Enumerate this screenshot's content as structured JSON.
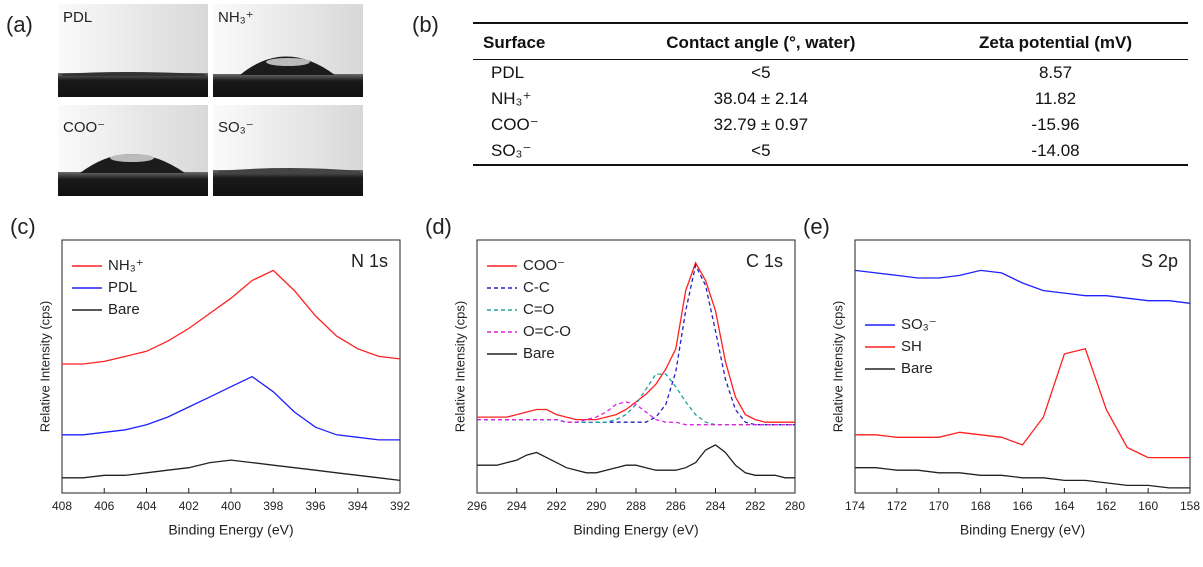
{
  "panel_a": {
    "label": "(a)",
    "images": [
      "PDL",
      "NH₃⁺",
      "COO⁻",
      "SO₃⁻"
    ]
  },
  "panel_b": {
    "label": "(b)",
    "table": {
      "columns": [
        "Surface",
        "Contact angle (°, water)",
        "Zeta potential (mV)"
      ],
      "rows": [
        [
          "PDL",
          "<5",
          "8.57"
        ],
        [
          "NH₃⁺",
          "38.04 ± 2.14",
          "11.82"
        ],
        [
          "COO⁻",
          "32.79 ± 0.97",
          "-15.96"
        ],
        [
          "SO₃⁻",
          "<5",
          "-14.08"
        ]
      ]
    }
  },
  "chart_data": [
    {
      "type": "line",
      "panel": "(c)",
      "annotation": "N 1s",
      "xlabel": "Binding Energy (eV)",
      "ylabel": "Relative Intensity (cps)",
      "x": [
        408,
        407,
        406,
        405,
        404,
        403,
        402,
        401,
        400,
        399,
        398,
        397,
        396,
        395,
        394,
        393,
        392
      ],
      "xlim": [
        408,
        392
      ],
      "xticks": [
        408,
        406,
        404,
        402,
        400,
        398,
        396,
        394,
        392
      ],
      "ylim": [
        0,
        100
      ],
      "legend": "upper left",
      "series": [
        {
          "name": "NH₃⁺",
          "color": "#ff2020",
          "line_style": "solid",
          "values": [
            51,
            51,
            52,
            54,
            56,
            60,
            65,
            71,
            77,
            84,
            88,
            80,
            70,
            62,
            57,
            54,
            53
          ]
        },
        {
          "name": "PDL",
          "color": "#2020ff",
          "line_style": "solid",
          "values": [
            23,
            23,
            24,
            25,
            27,
            30,
            34,
            38,
            42,
            46,
            40,
            32,
            26,
            23,
            22,
            21,
            21
          ]
        },
        {
          "name": "Bare",
          "color": "#222222",
          "line_style": "solid",
          "values": [
            6,
            6,
            7,
            7,
            8,
            9,
            10,
            12,
            13,
            12,
            11,
            10,
            9,
            8,
            7,
            6,
            5
          ]
        }
      ]
    },
    {
      "type": "line",
      "panel": "(d)",
      "annotation": "C 1s",
      "xlabel": "Binding Energy (eV)",
      "ylabel": "Relative Intensity (cps)",
      "x": [
        296,
        295.5,
        295,
        294.5,
        294,
        293.5,
        293,
        292.5,
        292,
        291.5,
        291,
        290.5,
        290,
        289.5,
        289,
        288.5,
        288,
        287.5,
        287,
        286.5,
        286,
        285.5,
        285,
        284.5,
        284,
        283.5,
        283,
        282.5,
        282,
        281.5,
        281,
        280.5,
        280
      ],
      "xlim": [
        296,
        280
      ],
      "xticks": [
        296,
        294,
        292,
        290,
        288,
        286,
        284,
        282,
        280
      ],
      "ylim": [
        0,
        100
      ],
      "legend": "upper left",
      "series": [
        {
          "name": "COO⁻",
          "color": "#ff2020",
          "line_style": "solid",
          "values": [
            30,
            30,
            30,
            30,
            31,
            32,
            33,
            33,
            31,
            30,
            29,
            29,
            29,
            30,
            31,
            33,
            36,
            39,
            43,
            49,
            57,
            80,
            91,
            84,
            72,
            52,
            38,
            31,
            29,
            28,
            28,
            28,
            28
          ]
        },
        {
          "name": "C-C",
          "color": "#2020c0",
          "line_style": "dashed",
          "values": [
            29,
            29,
            29,
            29,
            29,
            29,
            29,
            29,
            29,
            28,
            28,
            28,
            28,
            28,
            28,
            28,
            28,
            28,
            30,
            35,
            48,
            72,
            90,
            82,
            64,
            45,
            33,
            28,
            27,
            27,
            27,
            27,
            27
          ]
        },
        {
          "name": "C=O",
          "color": "#20a0a0",
          "line_style": "dashed",
          "values": [
            29,
            29,
            29,
            29,
            29,
            29,
            29,
            29,
            29,
            28,
            28,
            28,
            28,
            28,
            29,
            31,
            35,
            41,
            47,
            47,
            42,
            36,
            31,
            28,
            27,
            27,
            27,
            27,
            27,
            27,
            27,
            27,
            27
          ]
        },
        {
          "name": "O=C-O",
          "color": "#e020e0",
          "line_style": "dashed",
          "values": [
            29,
            29,
            29,
            29,
            29,
            29,
            29,
            29,
            29,
            28,
            28,
            29,
            30,
            32,
            35,
            36,
            35,
            32,
            29,
            28,
            28,
            27,
            27,
            27,
            27,
            27,
            27,
            27,
            27,
            27,
            27,
            27,
            27
          ]
        },
        {
          "name": "Bare",
          "color": "#222222",
          "line_style": "solid",
          "values": [
            11,
            11,
            11,
            12,
            13,
            15,
            16,
            14,
            12,
            10,
            9,
            8,
            8,
            9,
            10,
            11,
            11,
            10,
            9,
            9,
            9,
            10,
            12,
            17,
            19,
            16,
            11,
            8,
            7,
            7,
            7,
            6,
            6
          ]
        }
      ]
    },
    {
      "type": "line",
      "panel": "(e)",
      "annotation": "S 2p",
      "xlabel": "Binding Energy (eV)",
      "ylabel": "Relative Intensity (cps)",
      "x": [
        174,
        173,
        172,
        171,
        170,
        169,
        168,
        167,
        166,
        165,
        164,
        163,
        162,
        161,
        160,
        159,
        158
      ],
      "xlim": [
        174,
        158
      ],
      "xticks": [
        174,
        172,
        170,
        168,
        166,
        164,
        162,
        160,
        158
      ],
      "ylim": [
        0,
        100
      ],
      "legend": "center left",
      "series": [
        {
          "name": "SO₃⁻",
          "color": "#2020ff",
          "line_style": "solid",
          "values": [
            88,
            87,
            86,
            85,
            85,
            86,
            88,
            87,
            83,
            80,
            79,
            78,
            78,
            77,
            76,
            76,
            75
          ]
        },
        {
          "name": "SH",
          "color": "#ff2020",
          "line_style": "solid",
          "values": [
            23,
            23,
            22,
            22,
            22,
            24,
            23,
            22,
            19,
            30,
            55,
            57,
            33,
            18,
            14,
            14,
            14
          ]
        },
        {
          "name": "Bare",
          "color": "#222222",
          "line_style": "solid",
          "values": [
            10,
            10,
            9,
            9,
            8,
            8,
            7,
            7,
            6,
            6,
            5,
            5,
            4,
            3,
            3,
            2,
            2
          ]
        }
      ]
    }
  ]
}
